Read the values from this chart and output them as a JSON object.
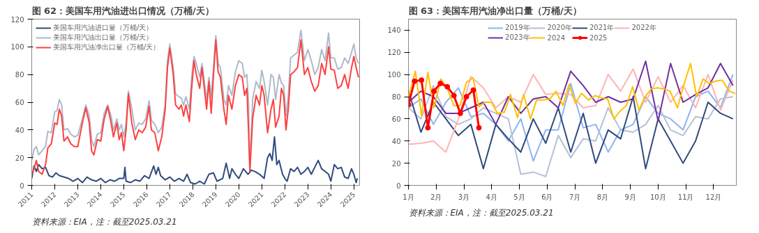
{
  "chart_data": [
    {
      "type": "line",
      "title": "图 62：美国车用汽油进出口情况（万桶/天）",
      "annotations": [
        "资料来源：EIA，注：截至2025.03.21"
      ],
      "xlim": [
        2011,
        2025.25
      ],
      "xticks": [
        2011,
        2012,
        2013,
        2014,
        2015,
        2016,
        2017,
        2018,
        2019,
        2020,
        2021,
        2022,
        2023,
        2024,
        2025
      ],
      "ylim": [
        0,
        120
      ],
      "yticks": [
        0,
        20,
        40,
        60,
        80,
        100,
        120
      ],
      "grid": false,
      "legend": "top left",
      "marker": "none",
      "line_style": "solid",
      "series": [
        {
          "name": "美国车用汽油进口量（万桶/天）",
          "color": "#2f4b7c",
          "x": [
            2011.0,
            2011.1,
            2011.2,
            2011.3,
            2011.45,
            2011.6,
            2011.75,
            2011.9,
            2012.05,
            2012.2,
            2012.4,
            2012.6,
            2012.8,
            2013.0,
            2013.2,
            2013.4,
            2013.6,
            2013.8,
            2014.0,
            2014.2,
            2014.4,
            2014.6,
            2014.8,
            2015.0,
            2015.05,
            2015.1,
            2015.3,
            2015.5,
            2015.7,
            2015.9,
            2016.1,
            2016.3,
            2016.4,
            2016.5,
            2016.6,
            2016.8,
            2017.0,
            2017.2,
            2017.4,
            2017.6,
            2017.75,
            2017.9,
            2018.1,
            2018.3,
            2018.5,
            2018.7,
            2018.9,
            2019.05,
            2019.3,
            2019.45,
            2019.6,
            2019.7,
            2019.85,
            2020.0,
            2020.2,
            2020.4,
            2020.55,
            2020.7,
            2020.9,
            2021.1,
            2021.25,
            2021.35,
            2021.45,
            2021.55,
            2021.65,
            2021.75,
            2021.9,
            2022.0,
            2022.1,
            2022.25,
            2022.4,
            2022.55,
            2022.7,
            2022.85,
            2023.0,
            2023.15,
            2023.3,
            2023.45,
            2023.6,
            2023.75,
            2023.9,
            2024.0,
            2024.15,
            2024.3,
            2024.45,
            2024.6,
            2024.75,
            2024.9,
            2025.0,
            2025.1,
            2025.15
          ],
          "values": [
            5,
            14,
            10,
            15,
            12,
            13,
            7,
            6,
            9,
            7,
            6,
            5,
            3,
            5,
            2,
            6,
            4,
            3,
            5,
            2,
            4,
            3,
            5,
            5,
            13,
            3,
            2,
            4,
            3,
            7,
            5,
            14,
            8,
            13,
            7,
            4,
            6,
            3,
            5,
            3,
            8,
            2,
            1,
            3,
            1,
            8,
            9,
            3,
            5,
            16,
            5,
            12,
            8,
            5,
            12,
            8,
            11,
            10,
            8,
            5,
            20,
            23,
            18,
            35,
            15,
            18,
            8,
            5,
            3,
            12,
            10,
            13,
            8,
            10,
            13,
            8,
            13,
            18,
            12,
            10,
            8,
            3,
            15,
            12,
            13,
            6,
            5,
            12,
            8,
            2,
            5
          ]
        },
        {
          "name": "美国车用汽油出口量（万桶/天）",
          "color": "#adb9ca",
          "x": [
            2011.0,
            2011.1,
            2011.2,
            2011.3,
            2011.45,
            2011.6,
            2011.7,
            2011.85,
            2012.0,
            2012.1,
            2012.2,
            2012.3,
            2012.4,
            2012.55,
            2012.7,
            2012.85,
            2013.0,
            2013.2,
            2013.35,
            2013.5,
            2013.6,
            2013.7,
            2013.85,
            2014.0,
            2014.15,
            2014.3,
            2014.45,
            2014.55,
            2014.7,
            2014.8,
            2014.9,
            2015.0,
            2015.1,
            2015.2,
            2015.35,
            2015.5,
            2015.65,
            2015.8,
            2015.95,
            2016.1,
            2016.2,
            2016.35,
            2016.5,
            2016.65,
            2016.8,
            2016.9,
            2017.0,
            2017.15,
            2017.25,
            2017.4,
            2017.5,
            2017.6,
            2017.7,
            2017.85,
            2017.95,
            2018.05,
            2018.15,
            2018.3,
            2018.4,
            2018.5,
            2018.6,
            2018.7,
            2018.8,
            2018.9,
            2019.0,
            2019.1,
            2019.2,
            2019.35,
            2019.45,
            2019.55,
            2019.7,
            2019.85,
            2020.0,
            2020.15,
            2020.25,
            2020.35,
            2020.42,
            2020.48,
            2020.6,
            2020.75,
            2020.9,
            2021.0,
            2021.1,
            2021.25,
            2021.4,
            2021.5,
            2021.6,
            2021.75,
            2021.85,
            2021.95,
            2022.05,
            2022.15,
            2022.25,
            2022.4,
            2022.55,
            2022.7,
            2022.85,
            2023.0,
            2023.15,
            2023.3,
            2023.45,
            2023.6,
            2023.75,
            2023.9,
            2024.0,
            2024.15,
            2024.3,
            2024.45,
            2024.6,
            2024.75,
            2024.9,
            2025.0,
            2025.1,
            2025.2
          ],
          "values": [
            18,
            26,
            28,
            22,
            25,
            28,
            39,
            38,
            53,
            54,
            62,
            58,
            40,
            41,
            37,
            35,
            36,
            48,
            58,
            50,
            33,
            28,
            37,
            38,
            52,
            58,
            50,
            40,
            48,
            40,
            44,
            35,
            45,
            68,
            55,
            40,
            45,
            44,
            48,
            61,
            47,
            44,
            38,
            42,
            58,
            90,
            102,
            85,
            66,
            64,
            63,
            58,
            64,
            55,
            78,
            93,
            88,
            78,
            88,
            75,
            62,
            78,
            64,
            85,
            108,
            88,
            85,
            62,
            58,
            72,
            65,
            82,
            90,
            88,
            78,
            80,
            60,
            12,
            62,
            75,
            70,
            83,
            75,
            58,
            80,
            78,
            62,
            80,
            74,
            72,
            50,
            65,
            92,
            94,
            96,
            112,
            90,
            98,
            90,
            80,
            85,
            98,
            90,
            110,
            92,
            92,
            84,
            85,
            92,
            88,
            96,
            102,
            92,
            88
          ]
        },
        {
          "name": "美国车用汽油净出口量（万桶/天）",
          "color": "#ff4040",
          "x": [
            2011.0,
            2011.1,
            2011.2,
            2011.3,
            2011.45,
            2011.6,
            2011.7,
            2011.85,
            2012.0,
            2012.1,
            2012.2,
            2012.3,
            2012.4,
            2012.55,
            2012.7,
            2012.85,
            2013.0,
            2013.2,
            2013.35,
            2013.5,
            2013.6,
            2013.7,
            2013.85,
            2014.0,
            2014.15,
            2014.3,
            2014.45,
            2014.55,
            2014.7,
            2014.8,
            2014.9,
            2015.0,
            2015.1,
            2015.2,
            2015.35,
            2015.5,
            2015.65,
            2015.8,
            2015.95,
            2016.1,
            2016.2,
            2016.35,
            2016.5,
            2016.65,
            2016.8,
            2016.9,
            2017.0,
            2017.15,
            2017.25,
            2017.4,
            2017.5,
            2017.6,
            2017.7,
            2017.85,
            2017.95,
            2018.05,
            2018.15,
            2018.3,
            2018.4,
            2018.5,
            2018.6,
            2018.7,
            2018.8,
            2018.9,
            2019.0,
            2019.1,
            2019.2,
            2019.35,
            2019.45,
            2019.55,
            2019.7,
            2019.85,
            2020.0,
            2020.15,
            2020.25,
            2020.35,
            2020.42,
            2020.48,
            2020.6,
            2020.75,
            2020.9,
            2021.0,
            2021.1,
            2021.25,
            2021.4,
            2021.5,
            2021.6,
            2021.75,
            2021.85,
            2021.95,
            2022.05,
            2022.15,
            2022.25,
            2022.4,
            2022.55,
            2022.7,
            2022.85,
            2023.0,
            2023.15,
            2023.3,
            2023.45,
            2023.6,
            2023.75,
            2023.9,
            2024.0,
            2024.15,
            2024.3,
            2024.45,
            2024.6,
            2024.75,
            2024.9,
            2025.0,
            2025.1,
            2025.2
          ],
          "values": [
            8,
            12,
            18,
            10,
            8,
            15,
            27,
            30,
            45,
            44,
            55,
            50,
            32,
            35,
            30,
            28,
            28,
            45,
            56,
            45,
            25,
            22,
            33,
            32,
            48,
            57,
            45,
            35,
            45,
            33,
            38,
            25,
            40,
            66,
            45,
            33,
            40,
            38,
            42,
            57,
            40,
            38,
            25,
            35,
            55,
            85,
            99,
            80,
            58,
            55,
            58,
            50,
            58,
            46,
            70,
            90,
            80,
            70,
            85,
            70,
            55,
            75,
            52,
            80,
            105,
            82,
            78,
            55,
            44,
            65,
            55,
            72,
            80,
            78,
            65,
            70,
            40,
            10,
            48,
            65,
            58,
            72,
            65,
            38,
            55,
            62,
            42,
            50,
            70,
            65,
            40,
            55,
            80,
            82,
            85,
            105,
            80,
            85,
            75,
            68,
            72,
            88,
            80,
            100,
            84,
            83,
            70,
            72,
            80,
            70,
            85,
            93,
            85,
            78
          ]
        }
      ]
    },
    {
      "type": "line",
      "title": "图 63：美国车用汽油净出口量（万桶/天）",
      "annotations": [
        "资料来源：EIA，注：截至2025.03.21"
      ],
      "xlim": [
        1,
        12.82
      ],
      "xticks": [
        {
          "value": 1,
          "label": "1月"
        },
        {
          "value": 2,
          "label": "2月"
        },
        {
          "value": 3,
          "label": "3月"
        },
        {
          "value": 4,
          "label": "4月"
        },
        {
          "value": 5,
          "label": "5月"
        },
        {
          "value": 6,
          "label": "6月"
        },
        {
          "value": 7,
          "label": "7月"
        },
        {
          "value": 8,
          "label": "8月"
        },
        {
          "value": 9,
          "label": "9月"
        },
        {
          "value": 10,
          "label": "10月"
        },
        {
          "value": 11,
          "label": "11月"
        },
        {
          "value": 12,
          "label": "12月"
        }
      ],
      "ylim": [
        0,
        150
      ],
      "yticks": [
        0,
        20,
        40,
        60,
        80,
        100,
        120,
        140
      ],
      "grid": false,
      "legend": "top",
      "marker": "none",
      "line_style": "solid",
      "x": [
        1,
        1.45,
        1.9,
        2.35,
        2.8,
        3.25,
        3.7,
        4.15,
        4.6,
        5.05,
        5.5,
        5.95,
        6.4,
        6.85,
        7.3,
        7.75,
        8.2,
        8.65,
        9.1,
        9.55,
        10.0,
        10.45,
        10.9,
        11.35,
        11.8,
        12.25,
        12.7
      ],
      "series": [
        {
          "name": "2019年",
          "color": "#8fb4ef",
          "values": [
            70,
            78,
            55,
            75,
            88,
            62,
            65,
            55,
            40,
            60,
            22,
            50,
            50,
            92,
            52,
            55,
            30,
            50,
            55,
            80,
            65,
            60,
            50,
            80,
            85,
            70,
            100
          ]
        },
        {
          "name": "2020年",
          "color": "#b4c0d4",
          "values": [
            70,
            60,
            90,
            62,
            55,
            60,
            70,
            65,
            60,
            10,
            12,
            8,
            45,
            25,
            42,
            40,
            70,
            50,
            48,
            55,
            72,
            50,
            45,
            62,
            60,
            78,
            80
          ]
        },
        {
          "name": "2021年",
          "color": "#2e4a7d",
          "values": [
            85,
            48,
            75,
            60,
            45,
            55,
            15,
            55,
            42,
            30,
            60,
            38,
            70,
            30,
            65,
            20,
            50,
            42,
            80,
            15,
            60,
            40,
            20,
            40,
            75,
            65,
            60
          ]
        },
        {
          "name": "2022年",
          "color": "#ffb3b3",
          "values": [
            37,
            38,
            40,
            30,
            60,
            98,
            88,
            70,
            80,
            75,
            100,
            82,
            83,
            82,
            70,
            72,
            100,
            85,
            105,
            75,
            98,
            75,
            90,
            70,
            100,
            68,
            95
          ]
        },
        {
          "name": "2023年",
          "color": "#7030a0",
          "values": [
            75,
            85,
            80,
            65,
            65,
            70,
            75,
            55,
            80,
            65,
            78,
            80,
            70,
            103,
            90,
            75,
            80,
            75,
            78,
            112,
            58,
            110,
            75,
            82,
            88,
            110,
            90
          ]
        },
        {
          "name": "2024",
          "color": "#ffc000",
          "x": [
            1,
            1.25,
            1.47,
            1.7,
            1.92,
            2.17,
            2.39,
            2.64,
            2.86,
            3.09,
            3.33,
            3.54,
            3.76,
            3.99,
            4.21,
            4.46,
            4.68,
            4.93,
            5.15,
            5.4,
            5.62,
            5.85,
            6.1,
            6.32,
            6.57,
            6.79,
            7.02,
            7.24,
            7.49,
            7.73,
            7.96,
            8.18,
            8.41,
            8.63,
            8.86,
            9.08,
            9.31,
            9.53,
            9.75,
            9.98,
            10.2,
            10.43,
            10.7,
            10.92,
            11.17,
            11.39,
            11.62,
            11.84,
            12.07,
            12.31,
            12.56,
            12.78
          ],
          "values": [
            80,
            103,
            63,
            102,
            70,
            96,
            88,
            72,
            72,
            93,
            97,
            71,
            75,
            75,
            65,
            66,
            82,
            61,
            82,
            60,
            77,
            77,
            78,
            85,
            72,
            91,
            74,
            83,
            77,
            81,
            79,
            78,
            60,
            67,
            72,
            89,
            68,
            80,
            87,
            88,
            87,
            85,
            70,
            90,
            110,
            80,
            96,
            92,
            94,
            95,
            85,
            83
          ]
        },
        {
          "name": "2025",
          "color": "#ff0000",
          "marker": "circle",
          "x": [
            1,
            1.22,
            1.47,
            1.7,
            1.92,
            2.15,
            2.4,
            2.64,
            2.87,
            3.09,
            3.34,
            3.54
          ],
          "values": [
            73,
            94,
            95,
            52,
            85,
            92,
            89,
            81,
            65,
            80,
            86,
            52
          ]
        }
      ]
    }
  ]
}
